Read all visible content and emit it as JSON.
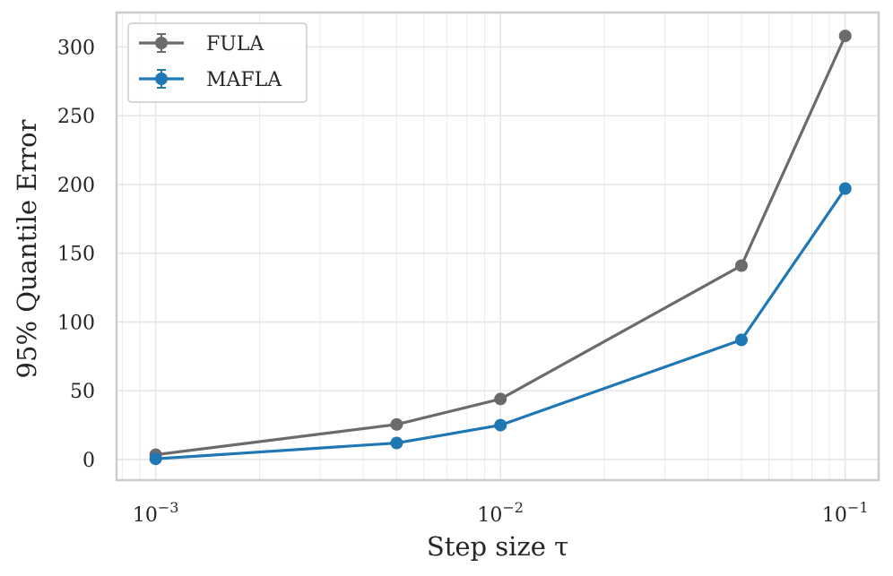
{
  "chart_data": {
    "type": "line",
    "xlabel": "Step size τ",
    "ylabel": "95% Quantile Error",
    "xscale": "log",
    "xlim": [
      0.00077,
      0.125
    ],
    "ylim": [
      -15,
      325
    ],
    "grid": true,
    "legend_position": "top-left",
    "x": [
      0.001,
      0.005,
      0.01,
      0.05,
      0.1
    ],
    "series": [
      {
        "name": "FULA",
        "color": "#6b6b6b",
        "values": [
          3.5,
          25.5,
          44,
          141,
          308
        ]
      },
      {
        "name": "MAFLA",
        "color": "#1f77b4",
        "values": [
          0.5,
          12,
          25,
          87,
          197
        ]
      }
    ],
    "xticks": [
      {
        "value": 0.001,
        "base": "10",
        "exp": "−3"
      },
      {
        "value": 0.01,
        "base": "10",
        "exp": "−2"
      },
      {
        "value": 0.1,
        "base": "10",
        "exp": "−1"
      }
    ],
    "yticks": [
      {
        "value": 0,
        "label": "0"
      },
      {
        "value": 50,
        "label": "50"
      },
      {
        "value": 100,
        "label": "100"
      },
      {
        "value": 150,
        "label": "150"
      },
      {
        "value": 200,
        "label": "200"
      },
      {
        "value": 250,
        "label": "250"
      },
      {
        "value": 300,
        "label": "300"
      }
    ]
  }
}
